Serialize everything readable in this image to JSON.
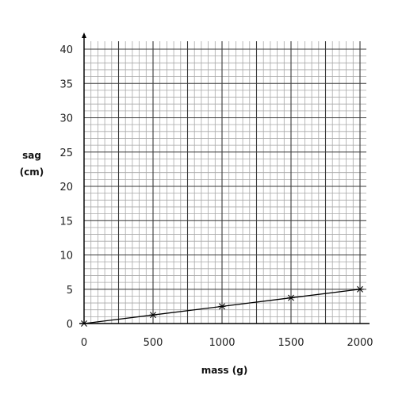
{
  "chart_data": {
    "type": "line",
    "title": "",
    "xlabel": "mass (g)",
    "ylabel_lines": [
      "sag",
      "(cm)"
    ],
    "xlim": [
      0,
      2000
    ],
    "ylim": [
      0,
      40
    ],
    "x_ticks": [
      0,
      500,
      1000,
      1500,
      2000
    ],
    "y_ticks": [
      0,
      5,
      10,
      15,
      20,
      25,
      30,
      35,
      40
    ],
    "grid": true,
    "legend": "none",
    "marker": "star",
    "line_color": "#000000",
    "series": [
      {
        "x": [
          0,
          500,
          1000,
          1500,
          2000
        ],
        "y": [
          0,
          1.25,
          2.5,
          3.75,
          5
        ]
      }
    ]
  }
}
